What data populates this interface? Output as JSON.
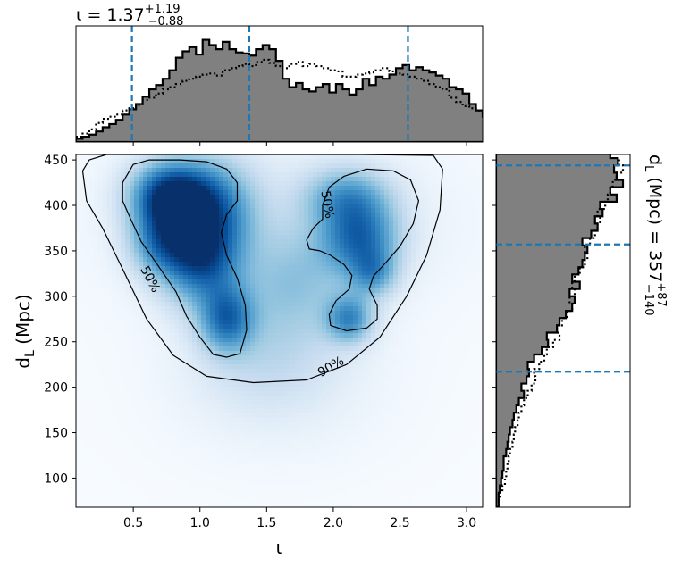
{
  "chart_data": [
    {
      "type": "heatmap",
      "panel": "joint",
      "xlabel": "ι",
      "ylabel": "d_L (Mpc)",
      "xlim": [
        0.07,
        3.12
      ],
      "ylim": [
        68,
        456
      ],
      "x_ticks": [
        "0.5",
        "1.0",
        "1.5",
        "2.0",
        "2.5",
        "3.0"
      ],
      "y_ticks": [
        "100",
        "150",
        "200",
        "250",
        "300",
        "350",
        "400",
        "450"
      ],
      "colormap": "Blues",
      "density_blobs": [
        {
          "x": 0.78,
          "y": 410,
          "sx": 0.2,
          "sy": 25,
          "w": 1.0
        },
        {
          "x": 1.0,
          "y": 345,
          "sx": 0.2,
          "sy": 35,
          "w": 0.85
        },
        {
          "x": 1.2,
          "y": 275,
          "sx": 0.14,
          "sy": 25,
          "w": 0.65
        },
        {
          "x": 1.1,
          "y": 400,
          "sx": 0.22,
          "sy": 35,
          "w": 0.55
        },
        {
          "x": 0.7,
          "y": 360,
          "sx": 0.16,
          "sy": 25,
          "w": 0.5
        },
        {
          "x": 2.2,
          "y": 365,
          "sx": 0.2,
          "sy": 28,
          "w": 0.68
        },
        {
          "x": 2.1,
          "y": 410,
          "sx": 0.22,
          "sy": 22,
          "w": 0.45
        },
        {
          "x": 2.3,
          "y": 325,
          "sx": 0.12,
          "sy": 18,
          "w": 0.42
        },
        {
          "x": 2.12,
          "y": 275,
          "sx": 0.12,
          "sy": 18,
          "w": 0.55
        },
        {
          "x": 1.7,
          "y": 315,
          "sx": 0.3,
          "sy": 45,
          "w": 0.3
        },
        {
          "x": 1.5,
          "y": 230,
          "sx": 0.35,
          "sy": 40,
          "w": 0.15
        },
        {
          "x": 1.6,
          "y": 200,
          "sx": 0.6,
          "sy": 60,
          "w": 0.05
        },
        {
          "x": 1.6,
          "y": 380,
          "sx": 0.9,
          "sy": 70,
          "w": 0.08
        }
      ],
      "contours": [
        {
          "label": "90%",
          "points": [
            [
              0.12,
              438
            ],
            [
              0.17,
              450
            ],
            [
              0.3,
              456
            ],
            [
              0.8,
              456
            ],
            [
              1.5,
              456
            ],
            [
              2.2,
              456
            ],
            [
              2.75,
              455
            ],
            [
              2.82,
              440
            ],
            [
              2.8,
              395
            ],
            [
              2.7,
              345
            ],
            [
              2.55,
              300
            ],
            [
              2.35,
              255
            ],
            [
              2.1,
              225
            ],
            [
              1.8,
              208
            ],
            [
              1.4,
              205
            ],
            [
              1.05,
              212
            ],
            [
              0.8,
              235
            ],
            [
              0.6,
              275
            ],
            [
              0.42,
              330
            ],
            [
              0.27,
              375
            ],
            [
              0.15,
              405
            ],
            [
              0.12,
              438
            ]
          ]
        },
        {
          "label": "50%",
          "points": [
            [
              0.42,
              425
            ],
            [
              0.5,
              445
            ],
            [
              0.62,
              450
            ],
            [
              0.85,
              450
            ],
            [
              1.05,
              448
            ],
            [
              1.2,
              440
            ],
            [
              1.28,
              425
            ],
            [
              1.28,
              405
            ],
            [
              1.2,
              390
            ],
            [
              1.16,
              370
            ],
            [
              1.2,
              345
            ],
            [
              1.28,
              320
            ],
            [
              1.34,
              290
            ],
            [
              1.35,
              263
            ],
            [
              1.3,
              237
            ],
            [
              1.2,
              233
            ],
            [
              1.1,
              236
            ],
            [
              1.0,
              255
            ],
            [
              0.9,
              278
            ],
            [
              0.82,
              305
            ],
            [
              0.68,
              335
            ],
            [
              0.56,
              360
            ],
            [
              0.48,
              385
            ],
            [
              0.42,
              405
            ],
            [
              0.42,
              425
            ]
          ]
        },
        {
          "label": "50%",
          "points": [
            [
              1.8,
              362
            ],
            [
              1.82,
              352
            ],
            [
              1.9,
              350
            ],
            [
              1.98,
              345
            ],
            [
              2.08,
              335
            ],
            [
              2.14,
              323
            ],
            [
              2.12,
              308
            ],
            [
              2.02,
              295
            ],
            [
              1.97,
              280
            ],
            [
              1.98,
              268
            ],
            [
              2.1,
              262
            ],
            [
              2.25,
              265
            ],
            [
              2.33,
              275
            ],
            [
              2.33,
              290
            ],
            [
              2.27,
              308
            ],
            [
              2.3,
              322
            ],
            [
              2.4,
              338
            ],
            [
              2.5,
              355
            ],
            [
              2.6,
              380
            ],
            [
              2.64,
              405
            ],
            [
              2.58,
              428
            ],
            [
              2.45,
              438
            ],
            [
              2.25,
              440
            ],
            [
              2.08,
              432
            ],
            [
              1.97,
              420
            ],
            [
              1.92,
              400
            ],
            [
              1.92,
              385
            ],
            [
              1.85,
              375
            ],
            [
              1.8,
              362
            ]
          ]
        }
      ],
      "contour_label_positions": [
        {
          "text": "90%",
          "x": 1.98,
          "y": 223,
          "rot": -30
        },
        {
          "text": "50%",
          "x": 0.63,
          "y": 319,
          "rot": 62
        },
        {
          "text": "50%",
          "x": 1.96,
          "y": 401,
          "rot": 80
        }
      ]
    },
    {
      "type": "area",
      "panel": "top-marginal",
      "title": "ι = 1.37",
      "title_sup": "+1.19",
      "title_sub": "−0.88",
      "x_step": 0.05,
      "x_start": 0.07,
      "series": [
        {
          "style": "filled-step",
          "values": [
            0.03,
            0.05,
            0.07,
            0.1,
            0.14,
            0.17,
            0.21,
            0.26,
            0.31,
            0.36,
            0.43,
            0.5,
            0.54,
            0.6,
            0.68,
            0.8,
            0.86,
            0.9,
            0.83,
            0.97,
            0.92,
            0.88,
            0.95,
            0.88,
            0.85,
            0.84,
            0.82,
            0.88,
            0.92,
            0.88,
            0.77,
            0.6,
            0.52,
            0.56,
            0.5,
            0.48,
            0.52,
            0.55,
            0.47,
            0.55,
            0.5,
            0.45,
            0.5,
            0.6,
            0.54,
            0.62,
            0.6,
            0.64,
            0.7,
            0.73,
            0.68,
            0.71,
            0.68,
            0.66,
            0.63,
            0.6,
            0.52,
            0.5,
            0.46,
            0.36,
            0.3,
            0.24,
            0.18,
            0.13,
            0.09,
            0.06,
            0.04,
            0.02,
            0.01,
            0.005,
            0.003
          ]
        },
        {
          "style": "dotted-step",
          "values": [
            0.05,
            0.08,
            0.12,
            0.18,
            0.22,
            0.24,
            0.26,
            0.3,
            0.32,
            0.35,
            0.4,
            0.42,
            0.46,
            0.5,
            0.52,
            0.55,
            0.58,
            0.6,
            0.62,
            0.64,
            0.65,
            0.63,
            0.68,
            0.7,
            0.72,
            0.74,
            0.72,
            0.76,
            0.78,
            0.75,
            0.72,
            0.7,
            0.74,
            0.76,
            0.72,
            0.74,
            0.72,
            0.7,
            0.68,
            0.67,
            0.62,
            0.62,
            0.64,
            0.65,
            0.66,
            0.68,
            0.7,
            0.67,
            0.65,
            0.64,
            0.62,
            0.6,
            0.58,
            0.55,
            0.52,
            0.5,
            0.42,
            0.38,
            0.34,
            0.32,
            0.3,
            0.28,
            0.26,
            0.24,
            0.2,
            0.18,
            0.14,
            0.1,
            0.07,
            0.05,
            0.03
          ]
        }
      ],
      "quantile_lines": [
        0.49,
        1.37,
        2.56
      ]
    },
    {
      "type": "area",
      "panel": "right-marginal",
      "ylabel": "d_L (Mpc) = 357",
      "ylabel_sup": "+87",
      "ylabel_sub": "−140",
      "y_step": 8,
      "y_start": 68,
      "series": [
        {
          "style": "filled-step",
          "values": [
            0.02,
            0.02,
            0.03,
            0.04,
            0.05,
            0.06,
            0.06,
            0.08,
            0.09,
            0.1,
            0.11,
            0.13,
            0.14,
            0.16,
            0.18,
            0.22,
            0.2,
            0.24,
            0.26,
            0.25,
            0.3,
            0.36,
            0.41,
            0.4,
            0.48,
            0.5,
            0.55,
            0.6,
            0.62,
            0.58,
            0.66,
            0.6,
            0.65,
            0.68,
            0.7,
            0.72,
            0.68,
            0.75,
            0.8,
            0.78,
            0.84,
            0.82,
            0.95,
            0.9,
            1.0,
            0.95,
            0.93,
            0.96,
            0.9
          ]
        },
        {
          "style": "dotted-step",
          "values": [
            0.0,
            0.03,
            0.05,
            0.07,
            0.08,
            0.09,
            0.1,
            0.11,
            0.13,
            0.14,
            0.15,
            0.17,
            0.18,
            0.2,
            0.22,
            0.25,
            0.28,
            0.31,
            0.3,
            0.34,
            0.38,
            0.4,
            0.45,
            0.5,
            0.48,
            0.52,
            0.56,
            0.6,
            0.58,
            0.62,
            0.6,
            0.62,
            0.66,
            0.7,
            0.72,
            0.7,
            0.74,
            0.78,
            0.8,
            0.82,
            0.8,
            0.86,
            0.88,
            0.9,
            0.92,
            0.95,
            1.0,
            0.97,
            0.95
          ]
        }
      ],
      "quantile_lines": [
        217,
        357,
        444
      ]
    }
  ]
}
